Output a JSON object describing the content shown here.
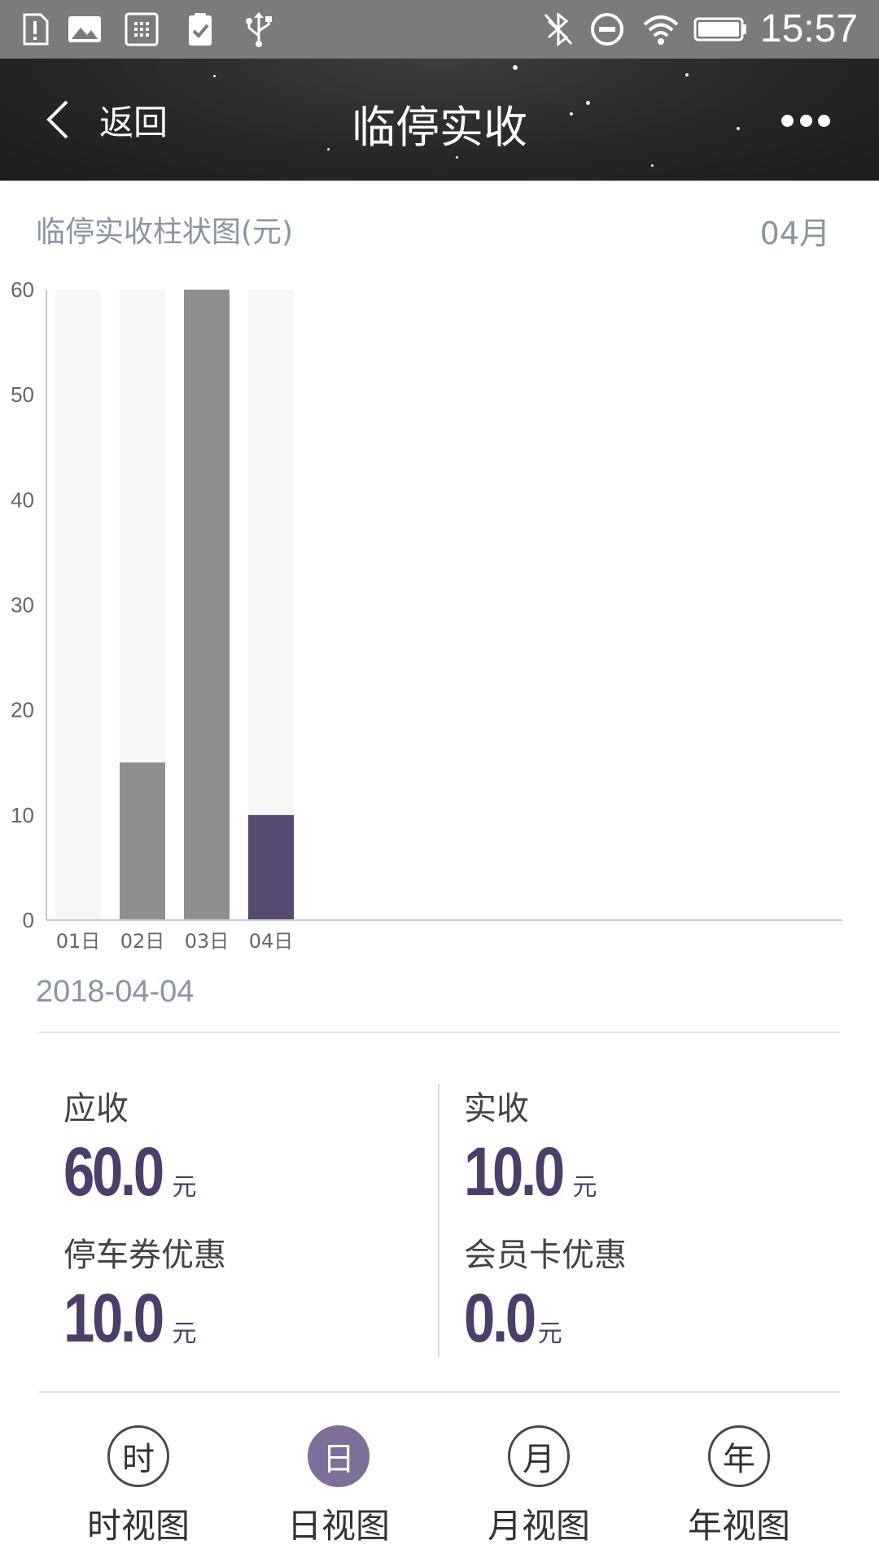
{
  "status_bar": {
    "time": "15:57",
    "icons": [
      "alert-notification-icon",
      "image-notification-icon",
      "app-notification-icon",
      "clipboard-check-icon",
      "usb-icon",
      "bluetooth-off-icon",
      "do-not-disturb-icon",
      "wifi-icon",
      "battery-icon"
    ]
  },
  "header": {
    "back_label": "返回",
    "title": "临停实收",
    "more_icon": "more-dots-icon"
  },
  "chart_section": {
    "title": "临停实收柱状图(元)",
    "month": "04月"
  },
  "chart_data": {
    "type": "bar",
    "title": "临停实收柱状图(元)",
    "categories": [
      "01日",
      "02日",
      "03日",
      "04日"
    ],
    "series": [
      {
        "values": [
          0,
          15,
          60,
          10
        ]
      }
    ],
    "y_ticks": [
      0,
      10,
      20,
      30,
      40,
      50,
      60
    ],
    "ylim": [
      0,
      60
    ],
    "grid": false,
    "highlighted_category": "04日",
    "colors": {
      "bar": "#8f8f8f",
      "highlight": "#554a72",
      "track": "#f6f6f6",
      "axis": "#c8c8c8"
    }
  },
  "detail": {
    "date": "2018-04-04",
    "receivable_label": "应收",
    "receivable_value": "60.0",
    "received_label": "实收",
    "received_value": "10.0",
    "coupon_label": "停车券优惠",
    "coupon_value": "10.0",
    "member_label": "会员卡优惠",
    "member_value": "0.0",
    "unit": "元"
  },
  "tabs": [
    {
      "icon_char": "时",
      "label": "时视图",
      "active": false
    },
    {
      "icon_char": "日",
      "label": "日视图",
      "active": true
    },
    {
      "icon_char": "月",
      "label": "月视图",
      "active": false
    },
    {
      "icon_char": "年",
      "label": "年视图",
      "active": false
    }
  ],
  "colors": {
    "accent": "#554a72",
    "active_tab": "#7d6f97",
    "value_text": "#4b3f69",
    "muted_text": "#8a94a3"
  }
}
